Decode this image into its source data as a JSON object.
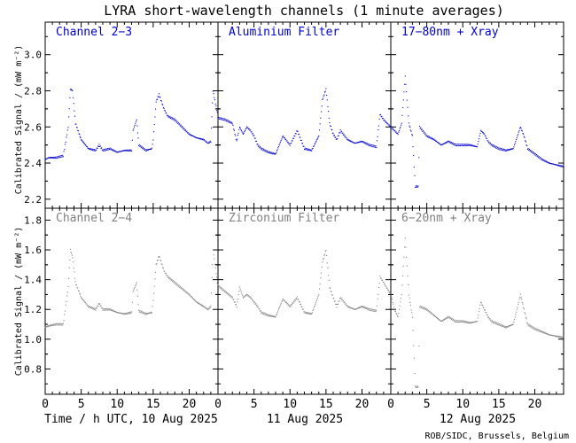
{
  "chart_data": {
    "type": "scatter",
    "title": "LYRA short-wavelength channels (1 minute averages)",
    "ylabel": "Calibrated Signal / (mW m⁻²)",
    "x_ticks": [
      "0",
      "5",
      "10",
      "15",
      "20"
    ],
    "day_labels": [
      "Time / h UTC, 10 Aug 2025",
      "11 Aug 2025",
      "12 Aug 2025"
    ],
    "credit": "ROB/SIDC, Brussels, Belgium",
    "xlim": [
      0,
      72
    ],
    "rows": [
      {
        "color": "#0000cc",
        "ylim": [
          2.15,
          3.18
        ],
        "y_ticks": [
          "2.2",
          "2.4",
          "2.6",
          "2.8",
          "3.0"
        ],
        "channels": [
          "Channel 2−3",
          "Aluminium Filter",
          "17−80nm + Xray"
        ],
        "series": [
          {
            "t": [
              0,
              0.5,
              1.5,
              2.5,
              3.2,
              3.5,
              3.8,
              4.2,
              5,
              6,
              7,
              7.5,
              8,
              9,
              10,
              11,
              12,
              12.2,
              12.7,
              13,
              14,
              14.8,
              15,
              15.4,
              15.8,
              16.5,
              17,
              18,
              19,
              20,
              21,
              22,
              22.6,
              23,
              23.3,
              24
            ],
            "v": [
              2.42,
              2.43,
              2.43,
              2.44,
              2.6,
              2.81,
              2.8,
              2.62,
              2.53,
              2.48,
              2.47,
              2.5,
              2.47,
              2.48,
              2.46,
              2.47,
              2.47,
              2.58,
              2.64,
              2.5,
              2.47,
              2.48,
              2.53,
              2.74,
              2.78,
              2.7,
              2.66,
              2.64,
              2.6,
              2.56,
              2.54,
              2.53,
              2.51,
              2.52,
              2.8,
              2.66
            ]
          },
          {
            "t": [
              24,
              25,
              26,
              26.6,
              27,
              27.5,
              28,
              28.5,
              29,
              29.5,
              30,
              31,
              32,
              33,
              34,
              35,
              36,
              37,
              38,
              38.5,
              39,
              39.5,
              40,
              40.5,
              41,
              42,
              43,
              44,
              45,
              46,
              46.5,
              47,
              48
            ],
            "v": [
              2.65,
              2.64,
              2.62,
              2.52,
              2.6,
              2.56,
              2.6,
              2.58,
              2.55,
              2.5,
              2.48,
              2.46,
              2.45,
              2.55,
              2.5,
              2.58,
              2.48,
              2.47,
              2.55,
              2.75,
              2.81,
              2.62,
              2.56,
              2.53,
              2.58,
              2.53,
              2.51,
              2.52,
              2.5,
              2.49,
              2.67,
              2.64,
              2.6
            ]
          },
          {
            "t": [
              48,
              48.5,
              49,
              49.5,
              50,
              50.5,
              51,
              51.4,
              51.8,
              52,
              53,
              54,
              55,
              56,
              57,
              58,
              59,
              60,
              60.5,
              61,
              61.5,
              62,
              63,
              64,
              65,
              66,
              66.5,
              67,
              68,
              69,
              70,
              71,
              72
            ],
            "v": [
              2.6,
              2.58,
              2.56,
              2.62,
              2.88,
              2.62,
              2.55,
              2.27,
              2.27,
              2.6,
              2.55,
              2.53,
              2.5,
              2.52,
              2.5,
              2.5,
              2.5,
              2.49,
              2.58,
              2.56,
              2.52,
              2.5,
              2.48,
              2.47,
              2.48,
              2.6,
              2.55,
              2.48,
              2.45,
              2.42,
              2.4,
              2.39,
              2.38
            ]
          }
        ]
      },
      {
        "color": "#808080",
        "ylim": [
          0.63,
          1.88
        ],
        "y_ticks": [
          "0.8",
          "1.0",
          "1.2",
          "1.4",
          "1.6",
          "1.8"
        ],
        "channels": [
          "Channel 2−4",
          "Zirconium Filter",
          "6−20nm + Xray"
        ],
        "series": [
          {
            "t": [
              0,
              0.5,
              1.5,
              2.5,
              3.2,
              3.5,
              3.8,
              4.2,
              5,
              6,
              7,
              7.5,
              8,
              9,
              10,
              11,
              12,
              12.2,
              12.7,
              13,
              14,
              14.8,
              15,
              15.4,
              15.8,
              16.5,
              17,
              18,
              19,
              20,
              21,
              22,
              22.6,
              23,
              23.3,
              24
            ],
            "v": [
              1.08,
              1.09,
              1.1,
              1.1,
              1.35,
              1.6,
              1.55,
              1.38,
              1.28,
              1.22,
              1.2,
              1.24,
              1.2,
              1.2,
              1.18,
              1.17,
              1.18,
              1.32,
              1.38,
              1.19,
              1.17,
              1.18,
              1.26,
              1.5,
              1.56,
              1.46,
              1.42,
              1.38,
              1.34,
              1.3,
              1.25,
              1.22,
              1.2,
              1.22,
              1.6,
              1.35
            ]
          },
          {
            "t": [
              24,
              25,
              26,
              26.6,
              27,
              27.5,
              28,
              28.5,
              29,
              29.5,
              30,
              31,
              32,
              33,
              34,
              35,
              36,
              37,
              38,
              38.5,
              39,
              39.5,
              40,
              40.5,
              41,
              42,
              43,
              44,
              45,
              46,
              46.5,
              47,
              48
            ],
            "v": [
              1.36,
              1.32,
              1.28,
              1.22,
              1.35,
              1.28,
              1.3,
              1.28,
              1.25,
              1.22,
              1.18,
              1.16,
              1.15,
              1.27,
              1.22,
              1.28,
              1.18,
              1.17,
              1.3,
              1.52,
              1.6,
              1.35,
              1.28,
              1.22,
              1.28,
              1.22,
              1.2,
              1.22,
              1.2,
              1.19,
              1.42,
              1.38,
              1.3
            ]
          },
          {
            "t": [
              48,
              48.5,
              49,
              49.5,
              50,
              50.5,
              51,
              51.4,
              51.8,
              52,
              53,
              54,
              55,
              56,
              57,
              58,
              59,
              60,
              60.5,
              61,
              61.5,
              62,
              63,
              64,
              65,
              66,
              66.5,
              67,
              68,
              69,
              70,
              71,
              72
            ],
            "v": [
              1.3,
              1.2,
              1.15,
              1.3,
              1.68,
              1.3,
              1.15,
              0.68,
              0.68,
              1.22,
              1.2,
              1.16,
              1.12,
              1.15,
              1.12,
              1.12,
              1.11,
              1.12,
              1.25,
              1.2,
              1.15,
              1.12,
              1.1,
              1.08,
              1.1,
              1.3,
              1.2,
              1.1,
              1.07,
              1.05,
              1.03,
              1.02,
              1.01
            ]
          }
        ]
      }
    ]
  }
}
